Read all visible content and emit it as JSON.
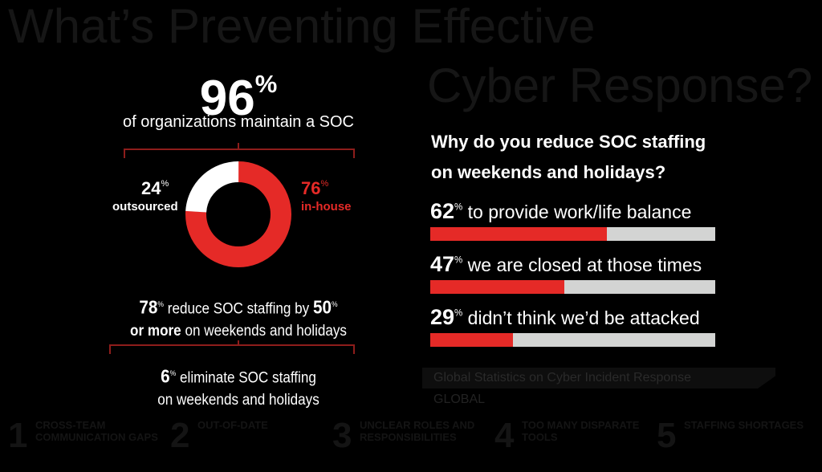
{
  "background": {
    "band_text": "Global Statistics on Cyber Incident Response",
    "headline_line1": "What’s Preventing Effective",
    "headline_line2": "Cyber Response?",
    "section": "GLOBAL",
    "items": [
      {
        "num": "1",
        "label": "CROSS-TEAM COMMUNICATION GAPS"
      },
      {
        "num": "2",
        "label": "OUT-OF-DATE"
      },
      {
        "num": "3",
        "label": "UNCLEAR ROLES AND RESPONSIBILITIES"
      },
      {
        "num": "4",
        "label": "TOO MANY DISPARATE TOOLS"
      },
      {
        "num": "5",
        "label": "STAFFING SHORTAGES"
      }
    ]
  },
  "left": {
    "headline_value": "96",
    "headline_subtitle": "of organizations maintain a SOC",
    "donut": {
      "outsourced": {
        "value": 24,
        "label": "outsourced",
        "color": "#ffffff"
      },
      "in_house": {
        "value": 76,
        "label": "in-house",
        "color": "#e52a27"
      }
    },
    "reduce": {
      "value": "78",
      "text": "reduce SOC staffing by",
      "value2": "50",
      "bold2": "or more",
      "text2": "on weekends and holidays"
    },
    "eliminate": {
      "value": "6",
      "text": "eliminate SOC staffing",
      "text2": "on weekends and holidays"
    }
  },
  "right": {
    "title_line1": "Why do you reduce SOC staffing",
    "title_line2": "on weekends and holidays?",
    "reasons": [
      {
        "value": 62,
        "label": "to provide work/life balance"
      },
      {
        "value": 47,
        "label": "we are closed at those times"
      },
      {
        "value": 29,
        "label": "didn’t think we’d be attacked"
      }
    ]
  },
  "percent_sign": "%",
  "colors": {
    "accent": "#e52a27",
    "bar_track": "#d3d4d3",
    "background": "#000000"
  }
}
